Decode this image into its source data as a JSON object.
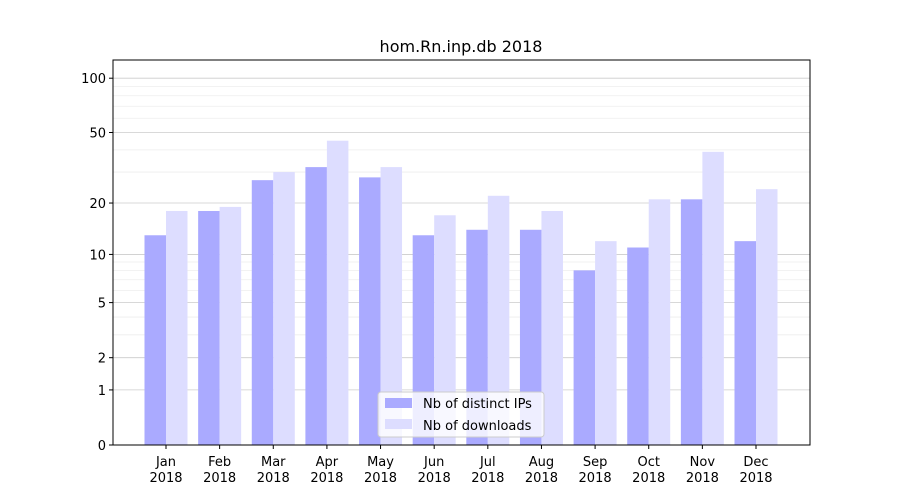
{
  "chart_data": {
    "type": "bar",
    "title": "hom.Rn.inp.db 2018",
    "xlabel": "",
    "ylabel": "",
    "yscale": "log10(1+y)",
    "ylim": [
      0,
      126
    ],
    "yticks": [
      0,
      1,
      2,
      5,
      10,
      20,
      50,
      100
    ],
    "ytick_labels": [
      "0",
      "1",
      "2",
      "5",
      "10",
      "20",
      "50",
      "100"
    ],
    "grid": true,
    "legend_position": "bottom-center",
    "categories": [
      "Jan\n2018",
      "Feb\n2018",
      "Mar\n2018",
      "Apr\n2018",
      "May\n2018",
      "Jun\n2018",
      "Jul\n2018",
      "Aug\n2018",
      "Sep\n2018",
      "Oct\n2018",
      "Nov\n2018",
      "Dec\n2018"
    ],
    "category_lines": [
      [
        "Jan",
        "2018"
      ],
      [
        "Feb",
        "2018"
      ],
      [
        "Mar",
        "2018"
      ],
      [
        "Apr",
        "2018"
      ],
      [
        "May",
        "2018"
      ],
      [
        "Jun",
        "2018"
      ],
      [
        "Jul",
        "2018"
      ],
      [
        "Aug",
        "2018"
      ],
      [
        "Sep",
        "2018"
      ],
      [
        "Oct",
        "2018"
      ],
      [
        "Nov",
        "2018"
      ],
      [
        "Dec",
        "2018"
      ]
    ],
    "series": [
      {
        "name": "Nb of distinct IPs",
        "color": "#aaaaff",
        "values": [
          13,
          18,
          27,
          32,
          28,
          13,
          14,
          14,
          8,
          11,
          21,
          12
        ]
      },
      {
        "name": "Nb of downloads",
        "color": "#ddddff",
        "values": [
          18,
          19,
          30,
          45,
          32,
          17,
          22,
          18,
          12,
          21,
          39,
          24
        ]
      }
    ]
  }
}
